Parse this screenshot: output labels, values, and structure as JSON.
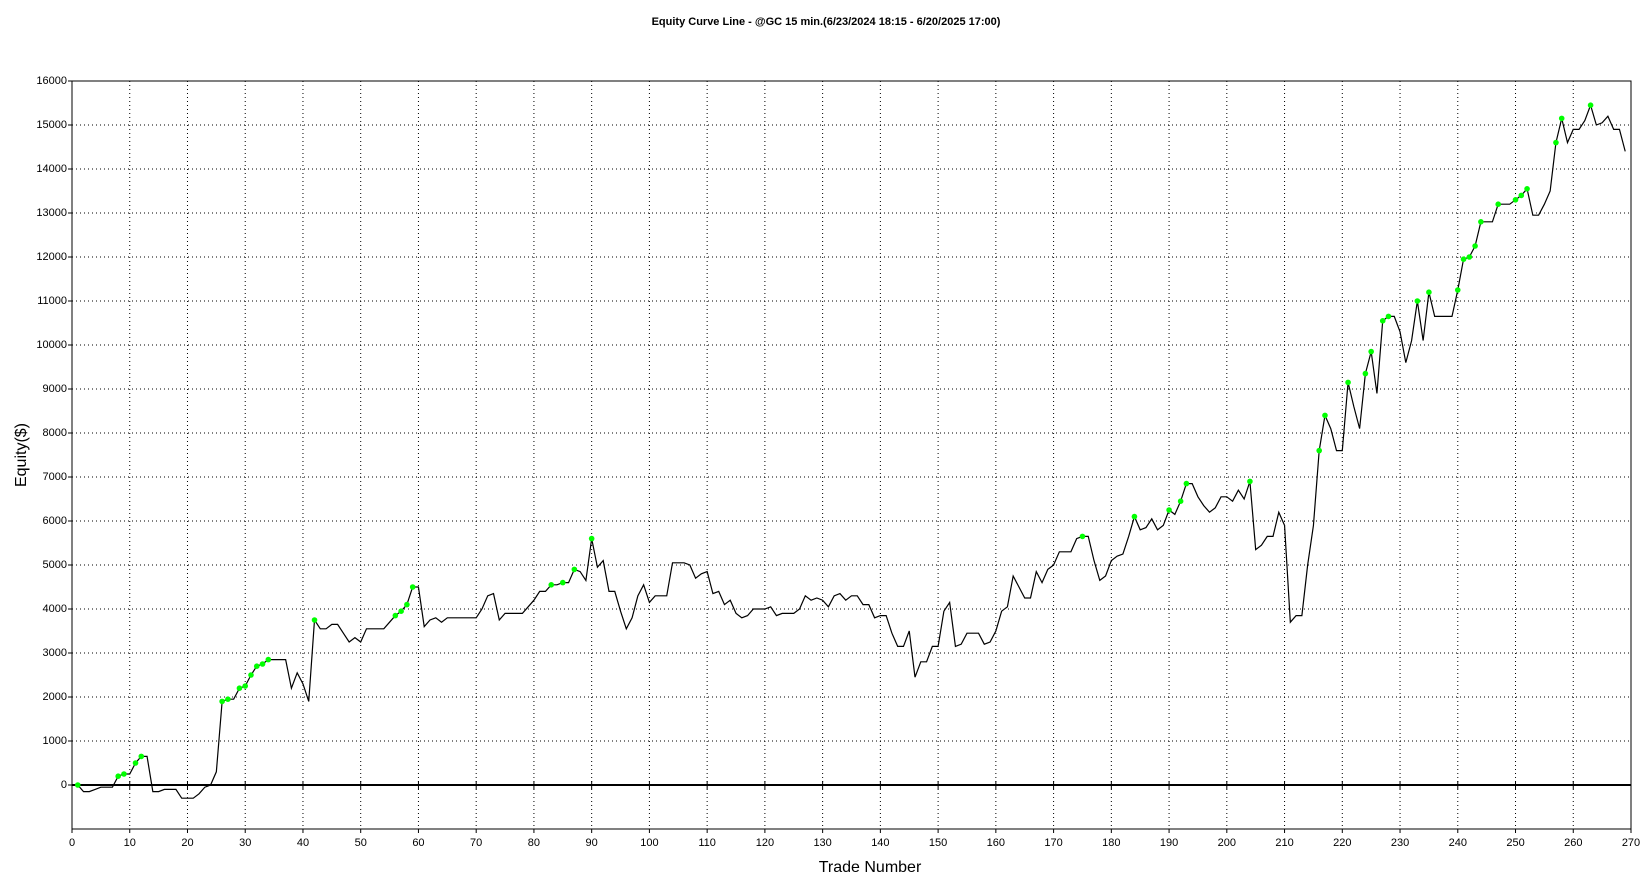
{
  "chart_data": {
    "type": "line",
    "title": "Equity Curve Line - @GC 15 min.(6/23/2024 18:15 - 6/20/2025 17:00)",
    "xlabel": "Trade Number",
    "ylabel": "Equity($)",
    "xlim": [
      0,
      270
    ],
    "xticks": [
      0,
      10,
      20,
      30,
      40,
      50,
      60,
      70,
      80,
      90,
      100,
      110,
      120,
      130,
      140,
      150,
      160,
      170,
      180,
      190,
      200,
      210,
      220,
      230,
      240,
      250,
      260,
      270
    ],
    "ylim": [
      -1000,
      16000
    ],
    "yticks": [
      0,
      1000,
      2000,
      3000,
      4000,
      5000,
      6000,
      7000,
      8000,
      9000,
      10000,
      11000,
      12000,
      13000,
      14000,
      15000,
      16000
    ],
    "grid": true,
    "highlight_new_highs": true,
    "highlight_color": "#00ff00",
    "series": [
      {
        "color": "#000000",
        "x": [
          1,
          2,
          3,
          4,
          5,
          6,
          7,
          8,
          9,
          10,
          11,
          12,
          13,
          14,
          15,
          16,
          17,
          18,
          19,
          20,
          21,
          22,
          23,
          24,
          25,
          26,
          27,
          28,
          29,
          30,
          31,
          32,
          33,
          34,
          35,
          36,
          37,
          38,
          39,
          40,
          41,
          42,
          43,
          44,
          45,
          46,
          47,
          48,
          49,
          50,
          51,
          52,
          53,
          54,
          55,
          56,
          57,
          58,
          59,
          60,
          61,
          62,
          63,
          64,
          65,
          66,
          67,
          68,
          69,
          70,
          71,
          72,
          73,
          74,
          75,
          76,
          77,
          78,
          79,
          80,
          81,
          82,
          83,
          84,
          85,
          86,
          87,
          88,
          89,
          90,
          91,
          92,
          93,
          94,
          95,
          96,
          97,
          98,
          99,
          100,
          101,
          102,
          103,
          104,
          105,
          106,
          107,
          108,
          109,
          110,
          111,
          112,
          113,
          114,
          115,
          116,
          117,
          118,
          119,
          120,
          121,
          122,
          123,
          124,
          125,
          126,
          127,
          128,
          129,
          130,
          131,
          132,
          133,
          134,
          135,
          136,
          137,
          138,
          139,
          140,
          141,
          142,
          143,
          144,
          145,
          146,
          147,
          148,
          149,
          150,
          151,
          152,
          153,
          154,
          155,
          156,
          157,
          158,
          159,
          160,
          161,
          162,
          163,
          164,
          165,
          166,
          167,
          168,
          169,
          170,
          171,
          172,
          173,
          174,
          175,
          176,
          177,
          178,
          179,
          180,
          181,
          182,
          183,
          184,
          185,
          186,
          187,
          188,
          189,
          190,
          191,
          192,
          193,
          194,
          195,
          196,
          197,
          198,
          199,
          200,
          201,
          202,
          203,
          204,
          205,
          206,
          207,
          208,
          209,
          210,
          211,
          212,
          213,
          214,
          215,
          216,
          217,
          218,
          219,
          220,
          221,
          222,
          223,
          224,
          225,
          226,
          227,
          228,
          229,
          230,
          231,
          232,
          233,
          234,
          235,
          236,
          237,
          238,
          239,
          240,
          241,
          242,
          243,
          244,
          245,
          246,
          247,
          248,
          249,
          250,
          251,
          252,
          253,
          254,
          255,
          256,
          257,
          258,
          259,
          260,
          261,
          262,
          263,
          264,
          265,
          266,
          267,
          268,
          269
        ],
        "values": [
          0,
          -150,
          -150,
          -100,
          -50,
          -50,
          -50,
          200,
          250,
          250,
          500,
          650,
          650,
          -150,
          -150,
          -100,
          -100,
          -100,
          -300,
          -300,
          -300,
          -200,
          -50,
          0,
          300,
          1900,
          1950,
          1950,
          2200,
          2250,
          2500,
          2700,
          2750,
          2850,
          2850,
          2850,
          2850,
          2200,
          2550,
          2300,
          1900,
          3750,
          3550,
          3550,
          3650,
          3650,
          3450,
          3250,
          3350,
          3250,
          3550,
          3550,
          3550,
          3550,
          3700,
          3850,
          3950,
          4100,
          4500,
          4500,
          3600,
          3750,
          3800,
          3700,
          3800,
          3800,
          3800,
          3800,
          3800,
          3800,
          4000,
          4300,
          4350,
          3750,
          3900,
          3900,
          3900,
          3900,
          4050,
          4200,
          4400,
          4400,
          4550,
          4550,
          4600,
          4600,
          4900,
          4850,
          4650,
          5600,
          4950,
          5100,
          4400,
          4400,
          3950,
          3550,
          3800,
          4300,
          4550,
          4150,
          4300,
          4300,
          4300,
          5050,
          5050,
          5050,
          5000,
          4700,
          4800,
          4850,
          4350,
          4400,
          4100,
          4200,
          3900,
          3800,
          3850,
          4000,
          4000,
          4000,
          4050,
          3850,
          3900,
          3900,
          3900,
          4000,
          4300,
          4200,
          4250,
          4200,
          4050,
          4300,
          4350,
          4200,
          4300,
          4300,
          4100,
          4100,
          3800,
          3850,
          3850,
          3450,
          3150,
          3150,
          3500,
          2450,
          2800,
          2800,
          3150,
          3150,
          3950,
          4150,
          3150,
          3200,
          3450,
          3450,
          3450,
          3200,
          3250,
          3500,
          3950,
          4050,
          4750,
          4500,
          4250,
          4250,
          4850,
          4600,
          4900,
          5000,
          5300,
          5300,
          5300,
          5600,
          5650,
          5650,
          5100,
          4650,
          4750,
          5100,
          5200,
          5250,
          5650,
          6100,
          5800,
          5850,
          6050,
          5800,
          5900,
          6250,
          6150,
          6450,
          6850,
          6850,
          6550,
          6350,
          6200,
          6300,
          6550,
          6550,
          6450,
          6700,
          6500,
          6900,
          5350,
          5450,
          5650,
          5650,
          6200,
          5900,
          3700,
          3850,
          3850,
          5000,
          5900,
          7600,
          8400,
          8100,
          7600,
          7600,
          9150,
          8600,
          8100,
          9350,
          9850,
          8900,
          10550,
          10650,
          10650,
          10300,
          9600,
          10100,
          11000,
          10100,
          11200,
          10650,
          10650,
          10650,
          10650,
          11250,
          11950,
          12000,
          12250,
          12800,
          12800,
          12800,
          13200,
          13200,
          13200,
          13300,
          13400,
          13550,
          12950,
          12950,
          13200,
          13500,
          14600,
          15150,
          14600,
          14900,
          14900,
          15100,
          15450,
          15000,
          15050,
          15200,
          14900,
          14900,
          14400
        ]
      }
    ]
  }
}
